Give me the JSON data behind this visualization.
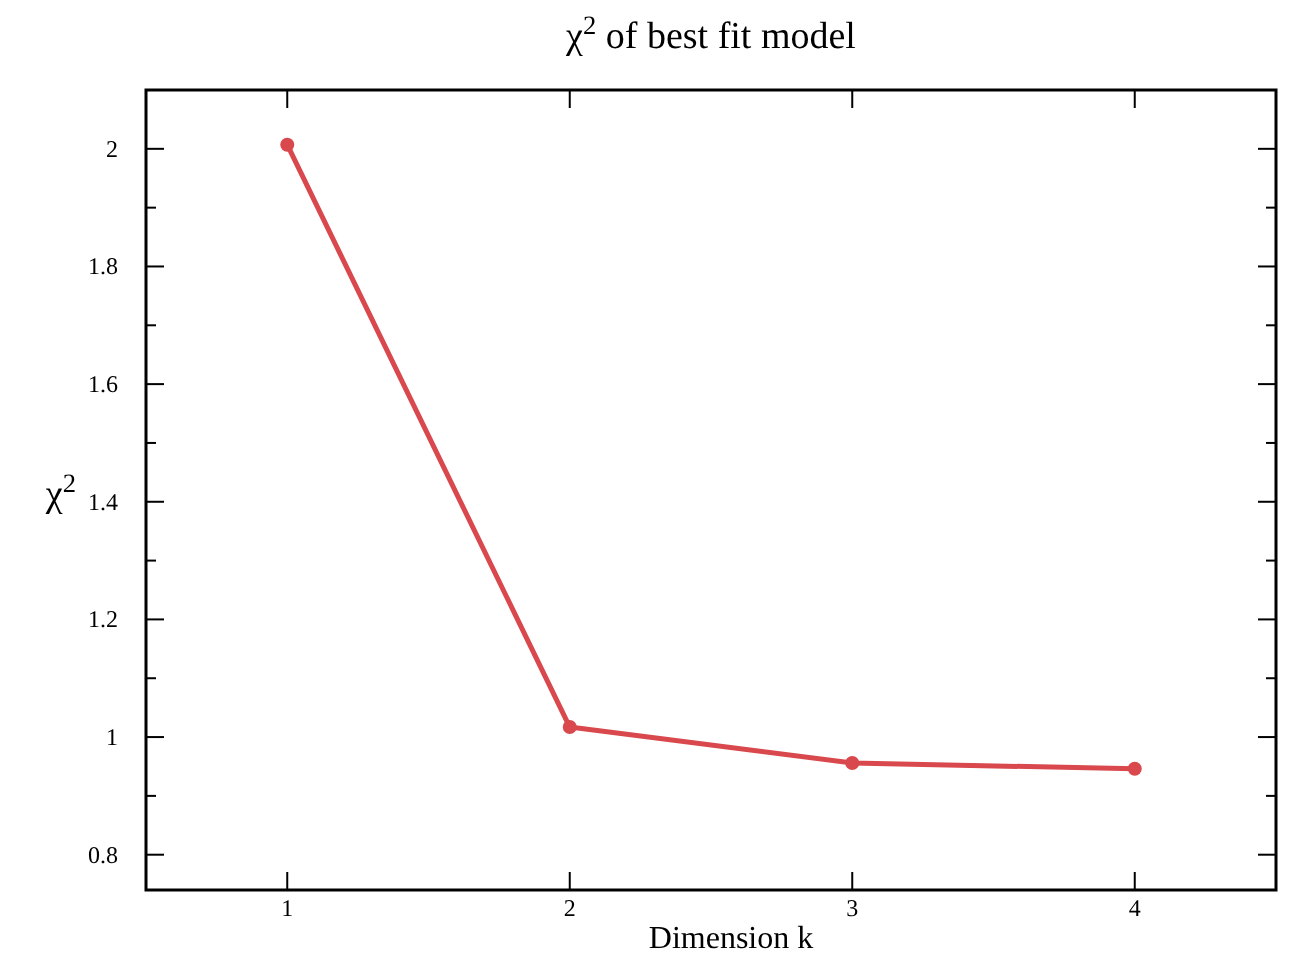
{
  "chart_data": {
    "type": "line",
    "title": "χ$^{2}$ of best fit model",
    "xlabel": "Dimension  k",
    "ylabel": "χ$^{2}$",
    "x": [
      1,
      2,
      3,
      4
    ],
    "series": [
      {
        "color": "#d9484c",
        "values": [
          2.007,
          1.017,
          0.956,
          0.946
        ]
      }
    ],
    "xlim": [
      0.5,
      4.5
    ],
    "xticks": [
      1,
      2,
      3,
      4
    ],
    "ylim": [
      0.74,
      2.1
    ],
    "yticks": [
      0.8,
      {
        "value": 0.9,
        "label": null
      },
      1,
      {
        "value": 1.1,
        "label": null
      },
      1.2,
      {
        "value": 1.3,
        "label": null
      },
      1.4,
      {
        "value": 1.5,
        "label": null
      },
      1.6,
      {
        "value": 1.7,
        "label": null
      },
      1.8,
      {
        "value": 1.9,
        "label": null
      },
      2,
      {
        "value": 2.1,
        "label": null
      }
    ],
    "marker": "circle",
    "line_style": "solid"
  }
}
